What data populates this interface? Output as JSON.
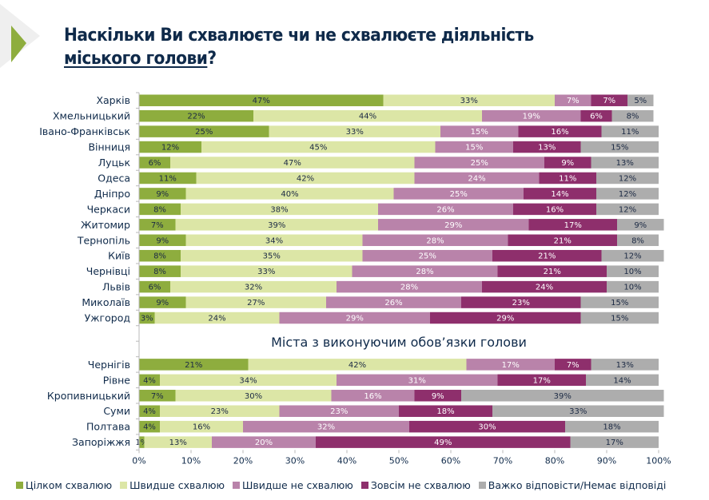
{
  "header": {
    "title_line1": "Наскільки Ви схвалюєте чи не схвалюєте діяльність",
    "title_line2_underlined": "міського голови",
    "title_line2_suffix": "?"
  },
  "colors": {
    "accent_green": "#8ead3e",
    "series": [
      "#8ead3e",
      "#dce6a6",
      "#b983aa",
      "#8e2f6c",
      "#adadad"
    ]
  },
  "chart_data": {
    "type": "bar",
    "orientation": "horizontal-stacked-100",
    "title": "Наскільки Ви схвалюєте чи не схвалюєте діяльність міського голови?",
    "xlabel": "",
    "ylabel": "",
    "xlim": [
      0,
      100
    ],
    "x_ticks": [
      "0%",
      "10%",
      "20%",
      "30%",
      "40%",
      "50%",
      "60%",
      "70%",
      "80%",
      "90%",
      "100%"
    ],
    "grid": false,
    "legend_position": "bottom",
    "series_names": [
      "Цілком схвалюю",
      "Швидше схвалюю",
      "Швидше не схвалюю",
      "Зовсім не схвалюю",
      "Важко відповісти/Немає відповіді"
    ],
    "groups": [
      {
        "subtitle": "",
        "categories": [
          "Харків",
          "Хмельницький",
          "Івано-Франківськ",
          "Вінниця",
          "Луцьк",
          "Одеса",
          "Дніпро",
          "Черкаси",
          "Житомир",
          "Тернопіль",
          "Київ",
          "Чернівці",
          "Львів",
          "Миколаїв",
          "Ужгород"
        ],
        "values": [
          [
            47,
            33,
            7,
            7,
            5
          ],
          [
            22,
            44,
            19,
            6,
            8
          ],
          [
            25,
            33,
            15,
            16,
            11
          ],
          [
            12,
            45,
            15,
            13,
            15
          ],
          [
            6,
            47,
            25,
            9,
            13
          ],
          [
            11,
            42,
            24,
            11,
            12
          ],
          [
            9,
            40,
            25,
            14,
            12
          ],
          [
            8,
            38,
            26,
            16,
            12
          ],
          [
            7,
            39,
            29,
            17,
            9
          ],
          [
            9,
            34,
            28,
            21,
            8
          ],
          [
            8,
            35,
            25,
            21,
            12
          ],
          [
            8,
            33,
            28,
            21,
            10
          ],
          [
            6,
            32,
            28,
            24,
            10
          ],
          [
            9,
            27,
            26,
            23,
            15
          ],
          [
            3,
            24,
            29,
            29,
            15
          ]
        ]
      },
      {
        "subtitle": "Міста з виконуючим обов’язки голови",
        "categories": [
          "Чернігів",
          "Рівне",
          "Кропивницький",
          "Суми",
          "Полтава",
          "Запоріжжя"
        ],
        "values": [
          [
            21,
            42,
            17,
            7,
            13
          ],
          [
            4,
            34,
            31,
            17,
            14
          ],
          [
            7,
            30,
            16,
            9,
            39
          ],
          [
            4,
            23,
            23,
            18,
            33
          ],
          [
            4,
            16,
            32,
            30,
            18
          ],
          [
            1,
            13,
            20,
            49,
            17
          ]
        ]
      }
    ]
  }
}
